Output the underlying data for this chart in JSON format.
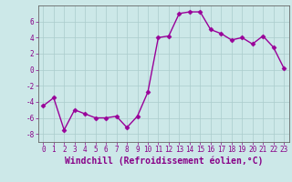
{
  "x": [
    0,
    1,
    2,
    3,
    4,
    5,
    6,
    7,
    8,
    9,
    10,
    11,
    12,
    13,
    14,
    15,
    16,
    17,
    18,
    19,
    20,
    21,
    22,
    23
  ],
  "y": [
    -4.5,
    -3.5,
    -7.5,
    -5.0,
    -5.5,
    -6.0,
    -6.0,
    -5.8,
    -7.2,
    -5.8,
    -2.8,
    4.0,
    4.2,
    7.0,
    7.2,
    7.2,
    5.0,
    4.5,
    3.7,
    4.0,
    3.2,
    4.2,
    2.8,
    0.2
  ],
  "line_color": "#990099",
  "marker": "D",
  "markersize": 2.5,
  "linewidth": 1.0,
  "bg_color": "#cce8e8",
  "grid_color": "#aacccc",
  "xlabel": "Windchill (Refroidissement éolien,°C)",
  "xlabel_color": "#880088",
  "ylim": [
    -9,
    8
  ],
  "xlim": [
    -0.5,
    23.5
  ],
  "yticks": [
    -8,
    -6,
    -4,
    -2,
    0,
    2,
    4,
    6
  ],
  "xticks": [
    0,
    1,
    2,
    3,
    4,
    5,
    6,
    7,
    8,
    9,
    10,
    11,
    12,
    13,
    14,
    15,
    16,
    17,
    18,
    19,
    20,
    21,
    22,
    23
  ],
  "tick_color": "#880088",
  "tick_labelsize": 5.5,
  "xlabel_fontsize": 7,
  "spine_color": "#666666",
  "figsize": [
    3.2,
    2.0
  ],
  "dpi": 100
}
